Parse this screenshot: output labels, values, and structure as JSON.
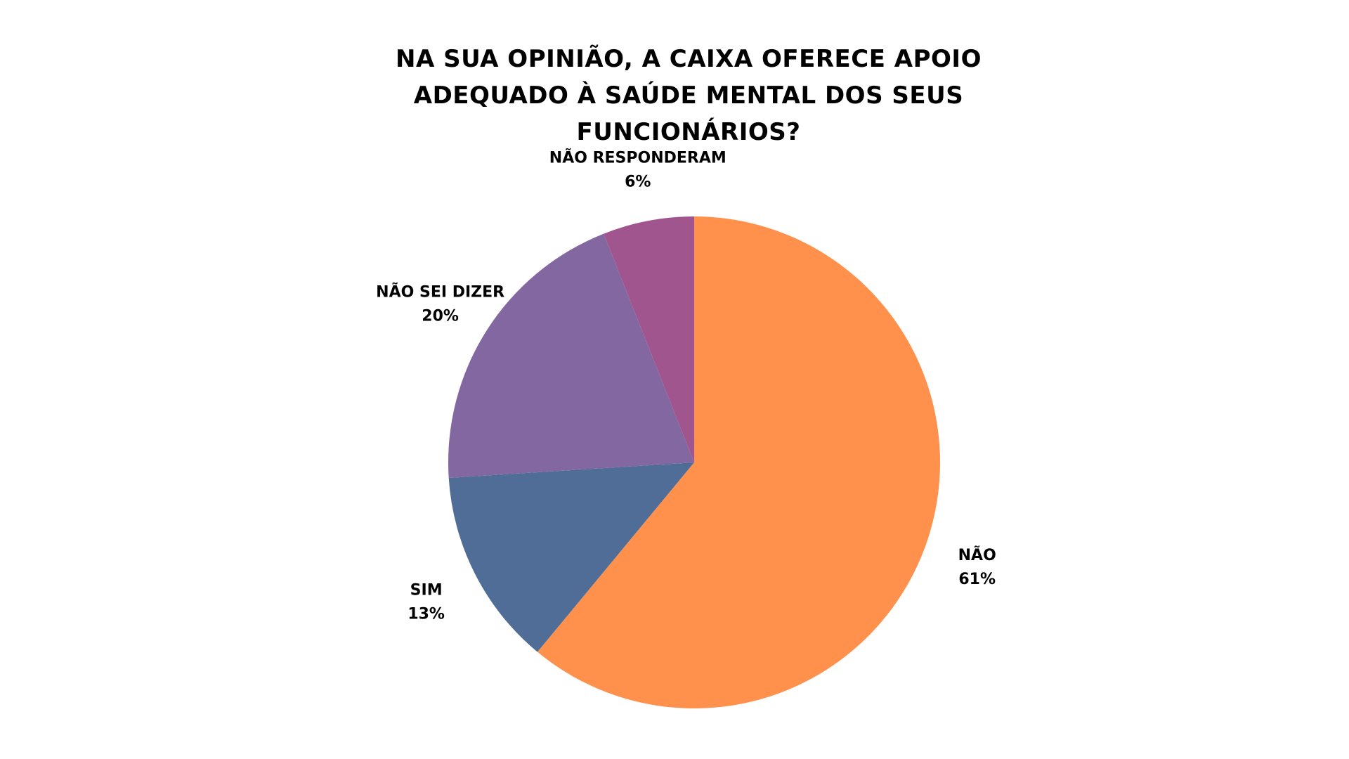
{
  "chart_data": {
    "type": "pie",
    "title": "NA SUA OPINIÃO, A CAIXA OFERECE APOIO ADEQUADO À SAÚDE MENTAL DOS SEUS FUNCIONÁRIOS?",
    "slices": [
      {
        "category": "NÃO",
        "percent_label": "61%",
        "value": 61,
        "color": "#FF914D"
      },
      {
        "category": "SIM",
        "percent_label": "13%",
        "value": 13,
        "color": "#4F6D96"
      },
      {
        "category": "NÃO SEI DIZER",
        "percent_label": "20%",
        "value": 20,
        "color": "#8267A0"
      },
      {
        "category": "NÃO RESPONDERAM",
        "percent_label": "6%",
        "value": 6,
        "color": "#A1558F"
      }
    ],
    "start_angle": "12 o'clock",
    "direction": "clockwise",
    "legend": "none",
    "label_placement": "outside"
  }
}
